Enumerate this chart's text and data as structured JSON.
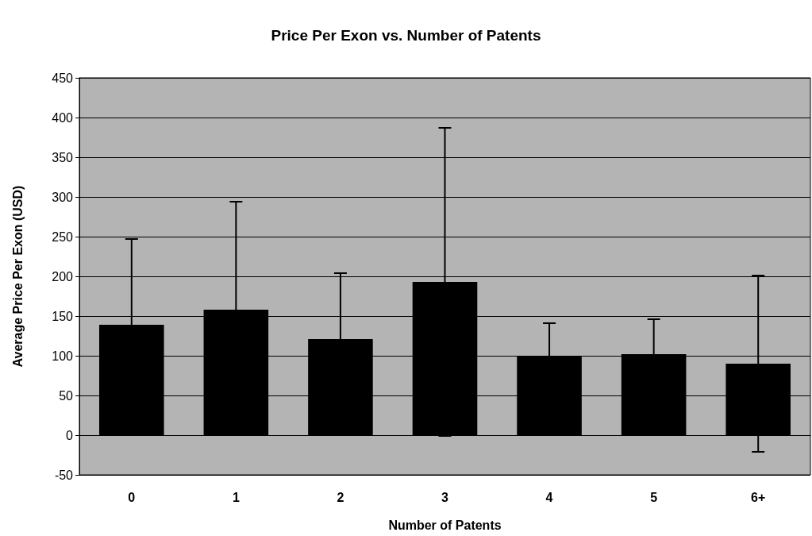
{
  "chart_data": {
    "type": "bar",
    "title": "Price Per Exon vs. Number of Patents",
    "xlabel": "Number of Patents",
    "ylabel": "Average Price Per Exon (USD)",
    "categories": [
      "0",
      "1",
      "2",
      "3",
      "4",
      "5",
      "6+"
    ],
    "values": [
      139,
      158,
      121,
      193,
      100,
      102,
      90
    ],
    "errors": [
      108,
      136,
      83,
      194,
      41,
      44,
      111
    ],
    "color": "#000000",
    "ylim": [
      -50,
      450
    ],
    "yticks": [
      -50,
      0,
      50,
      100,
      150,
      200,
      250,
      300,
      350,
      400,
      450
    ],
    "grid": "y"
  }
}
